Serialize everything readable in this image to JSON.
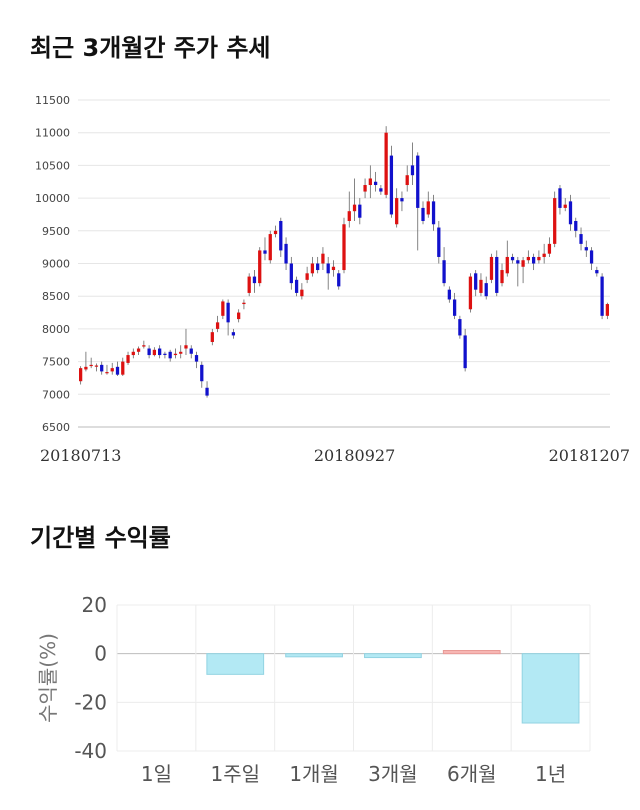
{
  "titles": {
    "price_chart": "최근 3개월간 주가 추세",
    "return_chart": "기간별 수익률"
  },
  "chart_data": [
    {
      "type": "candlestick",
      "ylim": [
        6500,
        11500
      ],
      "yticks": [
        6500,
        7000,
        7500,
        8000,
        8500,
        9000,
        9500,
        10000,
        10500,
        11000,
        11500
      ],
      "x_tick_labels": [
        {
          "index": 0,
          "label": "20180713"
        },
        {
          "index": 52,
          "label": "20180927"
        },
        {
          "index": 100,
          "label": "20181207"
        }
      ],
      "grid": true,
      "colors": {
        "up": "#dd1111",
        "down": "#1111cc",
        "flat": "#555555"
      },
      "candles": [
        [
          7200,
          7400,
          7150,
          7430
        ],
        [
          7380,
          7420,
          7350,
          7650
        ],
        [
          7440,
          7450,
          7400,
          7560
        ],
        [
          7430,
          7440,
          7350,
          7470
        ],
        [
          7450,
          7350,
          7300,
          7500
        ],
        [
          7330,
          7340,
          7300,
          7450
        ],
        [
          7350,
          7400,
          7300,
          7480
        ],
        [
          7420,
          7300,
          7280,
          7500
        ],
        [
          7300,
          7500,
          7280,
          7560
        ],
        [
          7480,
          7600,
          7450,
          7650
        ],
        [
          7600,
          7650,
          7550,
          7700
        ],
        [
          7650,
          7700,
          7600,
          7730
        ],
        [
          7730,
          7750,
          7700,
          7820
        ],
        [
          7700,
          7600,
          7550,
          7750
        ],
        [
          7600,
          7680,
          7580,
          7720
        ],
        [
          7700,
          7600,
          7550,
          7750
        ],
        [
          7620,
          7610,
          7550,
          7650
        ],
        [
          7650,
          7550,
          7500,
          7680
        ],
        [
          7600,
          7620,
          7550,
          7700
        ],
        [
          7620,
          7650,
          7550,
          7750
        ],
        [
          7700,
          7750,
          7600,
          8000
        ],
        [
          7700,
          7620,
          7550,
          7750
        ],
        [
          7600,
          7500,
          7400,
          7650
        ],
        [
          7450,
          7200,
          7100,
          7500
        ],
        [
          7100,
          6980,
          6950,
          7200
        ],
        [
          7800,
          7950,
          7750,
          8000
        ],
        [
          8000,
          8100,
          7950,
          8200
        ],
        [
          8200,
          8420,
          8150,
          8450
        ],
        [
          8400,
          8100,
          7900,
          8450
        ],
        [
          7950,
          7900,
          7850,
          8000
        ],
        [
          8150,
          8250,
          8100,
          8300
        ],
        [
          8380,
          8400,
          8300,
          8450
        ],
        [
          8550,
          8800,
          8500,
          8850
        ],
        [
          8800,
          8700,
          8550,
          8900
        ],
        [
          8700,
          9200,
          8650,
          9250
        ],
        [
          9200,
          9150,
          9050,
          9400
        ],
        [
          9050,
          9450,
          9000,
          9500
        ],
        [
          9450,
          9500,
          9400,
          9580
        ],
        [
          9650,
          9200,
          9100,
          9700
        ],
        [
          9300,
          9000,
          8900,
          9400
        ],
        [
          9000,
          8700,
          8600,
          9100
        ],
        [
          8750,
          8550,
          8500,
          8800
        ],
        [
          8500,
          8600,
          8450,
          8700
        ],
        [
          8750,
          8850,
          8700,
          8950
        ],
        [
          8850,
          9000,
          8800,
          9100
        ],
        [
          9000,
          8900,
          8850,
          9100
        ],
        [
          9000,
          9150,
          8900,
          9250
        ],
        [
          9000,
          8850,
          8600,
          9100
        ],
        [
          8900,
          8950,
          8800,
          9050
        ],
        [
          8850,
          8650,
          8600,
          8900
        ],
        [
          8900,
          9600,
          8850,
          9700
        ],
        [
          9650,
          9800,
          9550,
          10100
        ],
        [
          9800,
          9900,
          9650,
          10300
        ],
        [
          9900,
          9700,
          9600,
          10000
        ],
        [
          10100,
          10200,
          10000,
          10300
        ],
        [
          10200,
          10300,
          10000,
          10500
        ],
        [
          10250,
          10200,
          10100,
          10400
        ],
        [
          10150,
          10100,
          10050,
          10200
        ],
        [
          10050,
          11000,
          10000,
          11100
        ],
        [
          10650,
          9750,
          9700,
          10800
        ],
        [
          9600,
          10000,
          9550,
          10150
        ],
        [
          10000,
          9950,
          9800,
          10100
        ],
        [
          10200,
          10350,
          10100,
          10500
        ],
        [
          10500,
          10350,
          10200,
          10850
        ],
        [
          10650,
          9850,
          9200,
          10700
        ],
        [
          9850,
          9650,
          9600,
          9950
        ],
        [
          9750,
          9950,
          9700,
          10100
        ],
        [
          9950,
          9600,
          9500,
          10050
        ],
        [
          9550,
          9100,
          9000,
          9650
        ],
        [
          9050,
          8700,
          8650,
          9250
        ],
        [
          8600,
          8450,
          8400,
          8650
        ],
        [
          8450,
          8200,
          8150,
          8550
        ],
        [
          8150,
          7900,
          7850,
          8200
        ],
        [
          7900,
          7400,
          7350,
          8000
        ],
        [
          8300,
          8800,
          8250,
          8850
        ],
        [
          8850,
          8600,
          8500,
          8900
        ],
        [
          8550,
          8750,
          8500,
          8850
        ],
        [
          8700,
          8500,
          8450,
          8800
        ],
        [
          8750,
          9100,
          8700,
          9150
        ],
        [
          9100,
          8550,
          8500,
          9200
        ],
        [
          8700,
          8900,
          8650,
          9000
        ],
        [
          8850,
          9100,
          8800,
          9350
        ],
        [
          9100,
          9050,
          9000,
          9150
        ],
        [
          9050,
          9000,
          8650,
          9100
        ],
        [
          8950,
          9050,
          8700,
          9100
        ],
        [
          9050,
          9100,
          9000,
          9200
        ],
        [
          9100,
          9000,
          8900,
          9150
        ],
        [
          9050,
          9100,
          9000,
          9200
        ],
        [
          9100,
          9150,
          9000,
          9300
        ],
        [
          9150,
          9300,
          9100,
          9400
        ],
        [
          9300,
          10000,
          9250,
          10100
        ],
        [
          10150,
          9850,
          9750,
          10200
        ],
        [
          9850,
          9900,
          9800,
          10000
        ],
        [
          9950,
          9600,
          9500,
          10050
        ],
        [
          9650,
          9500,
          9400,
          9700
        ],
        [
          9450,
          9300,
          9200,
          9550
        ],
        [
          9250,
          9200,
          9100,
          9350
        ],
        [
          9200,
          9000,
          8900,
          9250
        ],
        [
          8900,
          8850,
          8800,
          8950
        ],
        [
          8800,
          8200,
          8150,
          8850
        ],
        [
          8200,
          8380,
          8150,
          8400
        ]
      ]
    },
    {
      "type": "bar",
      "categories": [
        "1일",
        "1주일",
        "1개월",
        "3개월",
        "6개월",
        "1년"
      ],
      "values": [
        0,
        -8.5,
        -1.3,
        -1.6,
        1.3,
        -28.5
      ],
      "ylim": [
        -40,
        20
      ],
      "yticks": [
        20,
        0,
        -20,
        -40
      ],
      "ylabel": "수익률(%)",
      "grid": true,
      "colors": {
        "negative": "#b3e9f4",
        "negative_edge": "#92d3e2",
        "positive": "#f7b6b3",
        "positive_edge": "#e89a96"
      }
    }
  ]
}
